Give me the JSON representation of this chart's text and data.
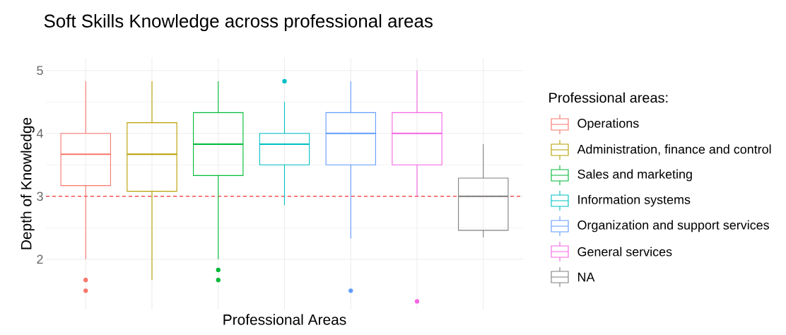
{
  "chart_data": {
    "type": "box",
    "title": "Soft Skills Knowledge across professional areas",
    "xlabel": "Professional Areas",
    "ylabel": "Depth of Knowledge",
    "legend_title": "Professional areas:",
    "legend": "right",
    "grid": true,
    "tick_labels": "y",
    "categories": [
      null,
      null,
      null,
      null,
      null,
      null,
      null
    ],
    "ylim": [
      1.2,
      5.2
    ],
    "yticks": [
      2,
      3,
      4,
      5
    ],
    "ref_lines": [
      {
        "axis": "y",
        "value": 3,
        "color": "#ff0000",
        "line_style": "dashed"
      }
    ],
    "series": [
      {
        "name": "Operations",
        "color": "#f8766d",
        "boxes": [
          {
            "low": 2,
            "q1": 3.17,
            "median": 3.67,
            "q3": 4,
            "high": 4.83,
            "outliers": [
              1.67,
              1.5
            ]
          },
          null,
          null,
          null,
          null,
          null,
          null
        ]
      },
      {
        "name": "Administration, finance and control",
        "color": "#b79f00",
        "boxes": [
          null,
          {
            "low": 1.67,
            "q1": 3.08,
            "median": 3.67,
            "q3": 4.17,
            "high": 4.83
          },
          null,
          null,
          null,
          null,
          null
        ]
      },
      {
        "name": "Sales and marketing",
        "color": "#00ba38",
        "boxes": [
          null,
          null,
          {
            "low": 2,
            "q1": 3.33,
            "median": 3.83,
            "q3": 4.33,
            "high": 4.83,
            "outliers": [
              1.83,
              1.67
            ]
          },
          null,
          null,
          null,
          null
        ]
      },
      {
        "name": "Information systems",
        "color": "#00bfc4",
        "boxes": [
          null,
          null,
          null,
          {
            "low": 2.86,
            "q1": 3.5,
            "median": 3.83,
            "q3": 4,
            "high": 4.5,
            "outliers": [
              4.83
            ]
          },
          null,
          null,
          null
        ]
      },
      {
        "name": "Organization and support services",
        "color": "#619cff",
        "boxes": [
          null,
          null,
          null,
          null,
          {
            "low": 2.33,
            "q1": 3.5,
            "median": 4,
            "q3": 4.33,
            "high": 4.83,
            "outliers": [
              1.5
            ]
          },
          null,
          null
        ]
      },
      {
        "name": "General services",
        "color": "#f564e3",
        "boxes": [
          null,
          null,
          null,
          null,
          null,
          {
            "low": 3,
            "q1": 3.5,
            "median": 4,
            "q3": 4.33,
            "high": 5,
            "outliers": [
              1.33
            ]
          },
          null
        ]
      },
      {
        "name": "NA",
        "color": "#7f7f7f",
        "boxes": [
          null,
          null,
          null,
          null,
          null,
          null,
          {
            "low": 2.35,
            "q1": 2.46,
            "median": 3,
            "q3": 3.29,
            "high": 3.83
          }
        ]
      }
    ]
  }
}
